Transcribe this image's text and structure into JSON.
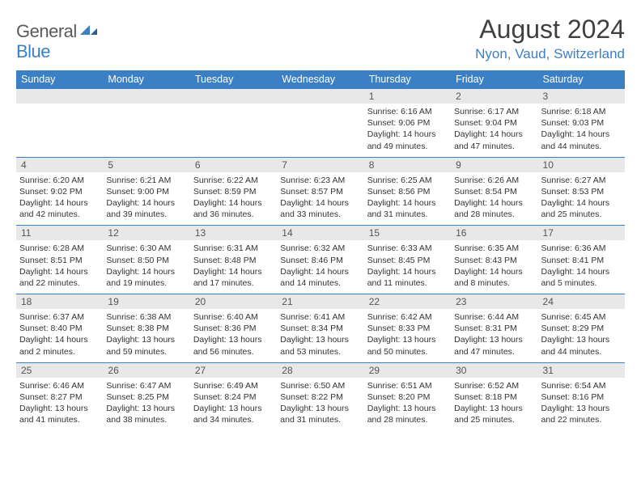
{
  "brand": {
    "part1": "General",
    "part2": "Blue"
  },
  "title": "August 2024",
  "location": "Nyon, Vaud, Switzerland",
  "weekdays": [
    "Sunday",
    "Monday",
    "Tuesday",
    "Wednesday",
    "Thursday",
    "Friday",
    "Saturday"
  ],
  "colors": {
    "header_bg": "#3b7fc4",
    "header_fg": "#ffffff",
    "daynum_bg": "#e8e8e8",
    "daynum_fg": "#555555",
    "text": "#333333",
    "brand_gray": "#5a5a5a",
    "brand_blue": "#3b7fc4",
    "border": "#3b7fc4"
  },
  "typography": {
    "title_fontsize": 32,
    "location_fontsize": 17,
    "weekday_fontsize": 12.5,
    "daynum_fontsize": 12,
    "body_fontsize": 10.5
  },
  "grid": [
    [
      null,
      null,
      null,
      null,
      {
        "n": "1",
        "sr": "6:16 AM",
        "ss": "9:06 PM",
        "dl": "14 hours and 49 minutes."
      },
      {
        "n": "2",
        "sr": "6:17 AM",
        "ss": "9:04 PM",
        "dl": "14 hours and 47 minutes."
      },
      {
        "n": "3",
        "sr": "6:18 AM",
        "ss": "9:03 PM",
        "dl": "14 hours and 44 minutes."
      }
    ],
    [
      {
        "n": "4",
        "sr": "6:20 AM",
        "ss": "9:02 PM",
        "dl": "14 hours and 42 minutes."
      },
      {
        "n": "5",
        "sr": "6:21 AM",
        "ss": "9:00 PM",
        "dl": "14 hours and 39 minutes."
      },
      {
        "n": "6",
        "sr": "6:22 AM",
        "ss": "8:59 PM",
        "dl": "14 hours and 36 minutes."
      },
      {
        "n": "7",
        "sr": "6:23 AM",
        "ss": "8:57 PM",
        "dl": "14 hours and 33 minutes."
      },
      {
        "n": "8",
        "sr": "6:25 AM",
        "ss": "8:56 PM",
        "dl": "14 hours and 31 minutes."
      },
      {
        "n": "9",
        "sr": "6:26 AM",
        "ss": "8:54 PM",
        "dl": "14 hours and 28 minutes."
      },
      {
        "n": "10",
        "sr": "6:27 AM",
        "ss": "8:53 PM",
        "dl": "14 hours and 25 minutes."
      }
    ],
    [
      {
        "n": "11",
        "sr": "6:28 AM",
        "ss": "8:51 PM",
        "dl": "14 hours and 22 minutes."
      },
      {
        "n": "12",
        "sr": "6:30 AM",
        "ss": "8:50 PM",
        "dl": "14 hours and 19 minutes."
      },
      {
        "n": "13",
        "sr": "6:31 AM",
        "ss": "8:48 PM",
        "dl": "14 hours and 17 minutes."
      },
      {
        "n": "14",
        "sr": "6:32 AM",
        "ss": "8:46 PM",
        "dl": "14 hours and 14 minutes."
      },
      {
        "n": "15",
        "sr": "6:33 AM",
        "ss": "8:45 PM",
        "dl": "14 hours and 11 minutes."
      },
      {
        "n": "16",
        "sr": "6:35 AM",
        "ss": "8:43 PM",
        "dl": "14 hours and 8 minutes."
      },
      {
        "n": "17",
        "sr": "6:36 AM",
        "ss": "8:41 PM",
        "dl": "14 hours and 5 minutes."
      }
    ],
    [
      {
        "n": "18",
        "sr": "6:37 AM",
        "ss": "8:40 PM",
        "dl": "14 hours and 2 minutes."
      },
      {
        "n": "19",
        "sr": "6:38 AM",
        "ss": "8:38 PM",
        "dl": "13 hours and 59 minutes."
      },
      {
        "n": "20",
        "sr": "6:40 AM",
        "ss": "8:36 PM",
        "dl": "13 hours and 56 minutes."
      },
      {
        "n": "21",
        "sr": "6:41 AM",
        "ss": "8:34 PM",
        "dl": "13 hours and 53 minutes."
      },
      {
        "n": "22",
        "sr": "6:42 AM",
        "ss": "8:33 PM",
        "dl": "13 hours and 50 minutes."
      },
      {
        "n": "23",
        "sr": "6:44 AM",
        "ss": "8:31 PM",
        "dl": "13 hours and 47 minutes."
      },
      {
        "n": "24",
        "sr": "6:45 AM",
        "ss": "8:29 PM",
        "dl": "13 hours and 44 minutes."
      }
    ],
    [
      {
        "n": "25",
        "sr": "6:46 AM",
        "ss": "8:27 PM",
        "dl": "13 hours and 41 minutes."
      },
      {
        "n": "26",
        "sr": "6:47 AM",
        "ss": "8:25 PM",
        "dl": "13 hours and 38 minutes."
      },
      {
        "n": "27",
        "sr": "6:49 AM",
        "ss": "8:24 PM",
        "dl": "13 hours and 34 minutes."
      },
      {
        "n": "28",
        "sr": "6:50 AM",
        "ss": "8:22 PM",
        "dl": "13 hours and 31 minutes."
      },
      {
        "n": "29",
        "sr": "6:51 AM",
        "ss": "8:20 PM",
        "dl": "13 hours and 28 minutes."
      },
      {
        "n": "30",
        "sr": "6:52 AM",
        "ss": "8:18 PM",
        "dl": "13 hours and 25 minutes."
      },
      {
        "n": "31",
        "sr": "6:54 AM",
        "ss": "8:16 PM",
        "dl": "13 hours and 22 minutes."
      }
    ]
  ],
  "labels": {
    "sunrise": "Sunrise:",
    "sunset": "Sunset:",
    "daylight": "Daylight:"
  }
}
